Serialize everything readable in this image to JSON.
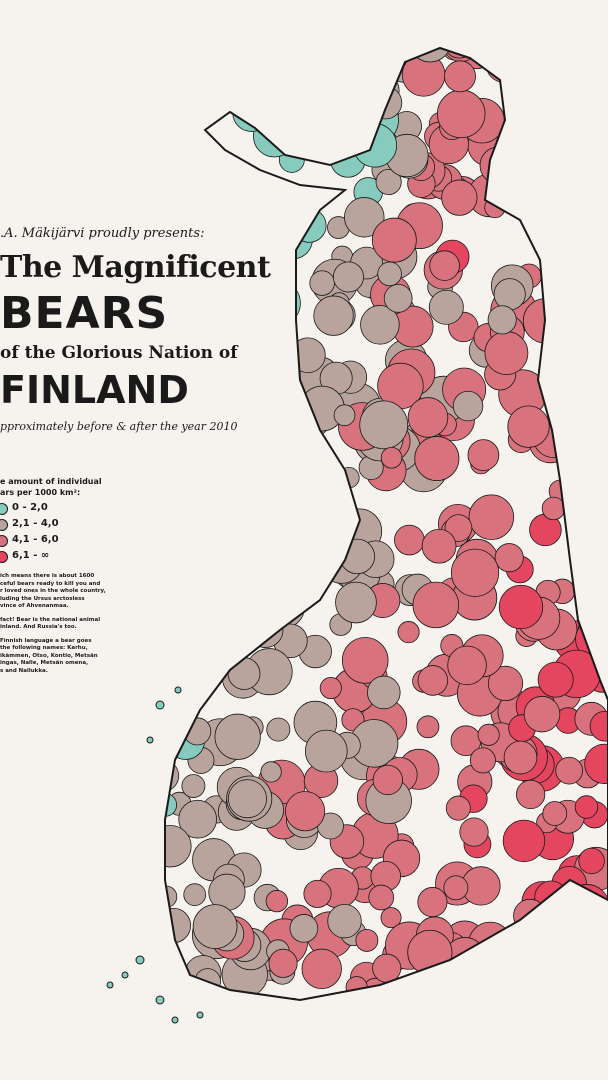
{
  "header": {
    "credit": ".A. Mäkijärvi proudly presents:",
    "title_line1": "The Magnificent",
    "title_bears": "BEARS",
    "title_line3": "of the Glorious Nation of",
    "title_finland": "FINLAND",
    "subtitle": "pproximately before & after the year 2010"
  },
  "legend": {
    "title": [
      "e amount of individual",
      "ars per 1000 km²:"
    ],
    "items": [
      {
        "label": "0 - 2,0",
        "color": "#86cbbd"
      },
      {
        "label": "2,1 - 4,0",
        "color": "#b9a49d"
      },
      {
        "label": "4,1 - 6,0",
        "color": "#d8727c"
      },
      {
        "label": "6,1 - ∞",
        "color": "#e4455f"
      }
    ]
  },
  "notes": [
    [
      "ich means there is about 1600",
      "ceful bears ready to kill you and",
      "r loved ones in the whole country,",
      "luding the Ursus arctosless",
      "vince of Ahvenanmaa."
    ],
    [
      "fact! Bear is the national animal",
      "inland. And Russia's too."
    ],
    [
      "Finnish language a bear goes",
      "the following names: Karhu,",
      "ikämmen, Otso, Kontio, Metsän",
      "ingas, Nalle, Metsän omena,",
      "s and Nallukka."
    ]
  ]
}
